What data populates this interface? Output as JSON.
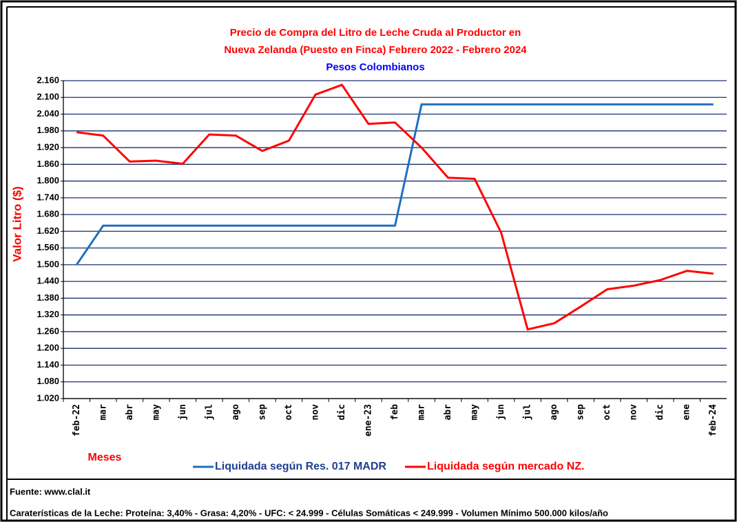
{
  "chart_data": {
    "type": "line",
    "title": [
      "Precio de Compra del Litro de Leche Cruda al Productor en",
      "Nueva Zelanda (Puesto en Finca) Febrero 2022 -  Febrero 2024"
    ],
    "subtitle": "Pesos Colombianos",
    "y_label": "Valor Litro ($)",
    "x_label": "Meses",
    "categories": [
      "feb-22",
      "mar",
      "abr",
      "may",
      "jun",
      "jul",
      "ago",
      "sep",
      "oct",
      "nov",
      "dic",
      "ene-23",
      "feb",
      "mar",
      "abr",
      "may",
      "jun",
      "jul",
      "ago",
      "sep",
      "oct",
      "nov",
      "dic",
      "ene",
      "feb-24"
    ],
    "series": [
      {
        "name": "Liquidada según Res. 017 MADR",
        "color": "#1f6fbf",
        "values": [
          1500,
          1640,
          1640,
          1640,
          1640,
          1640,
          1640,
          1640,
          1640,
          1640,
          1640,
          1640,
          1640,
          2075,
          2075,
          2075,
          2075,
          2075,
          2075,
          2075,
          2075,
          2075,
          2075,
          2075,
          2075
        ]
      },
      {
        "name": "Liquidada según mercado NZ.",
        "color": "#ff0000",
        "values": [
          1975,
          1963,
          1870,
          1873,
          1862,
          1967,
          1963,
          1908,
          1945,
          2110,
          2145,
          2005,
          2010,
          1920,
          1812,
          1808,
          1615,
          1268,
          1290,
          1350,
          1412,
          1425,
          1445,
          1478,
          1468
        ]
      }
    ],
    "ylim": [
      1020,
      2160
    ],
    "yticks": [
      {
        "value": 1020,
        "label": "1.020"
      },
      {
        "value": 1080,
        "label": "1.080"
      },
      {
        "value": 1140,
        "label": "1.140"
      },
      {
        "value": 1200,
        "label": "1.200"
      },
      {
        "value": 1260,
        "label": "1.260"
      },
      {
        "value": 1320,
        "label": "1.320"
      },
      {
        "value": 1380,
        "label": "1.380"
      },
      {
        "value": 1440,
        "label": "1.440"
      },
      {
        "value": 1500,
        "label": "1.500"
      },
      {
        "value": 1560,
        "label": "1.560"
      },
      {
        "value": 1620,
        "label": "1.620"
      },
      {
        "value": 1680,
        "label": "1.680"
      },
      {
        "value": 1740,
        "label": "1.740"
      },
      {
        "value": 1800,
        "label": "1.800"
      },
      {
        "value": 1860,
        "label": "1.860"
      },
      {
        "value": 1920,
        "label": "1.920"
      },
      {
        "value": 1980,
        "label": "1.980"
      },
      {
        "value": 2040,
        "label": "2.040"
      },
      {
        "value": 2100,
        "label": "2.100"
      },
      {
        "value": 2160,
        "label": "2.160"
      }
    ],
    "grid": true,
    "source": "Fuente: www.clal.it",
    "footnote": "Caraterísticas de la Leche: Proteína: 3,40% - Grasa: 4,20% - UFC: < 24.999 - Células Somáticas < 249.999 - Volumen Mínimo 500.000 kilos/año"
  }
}
